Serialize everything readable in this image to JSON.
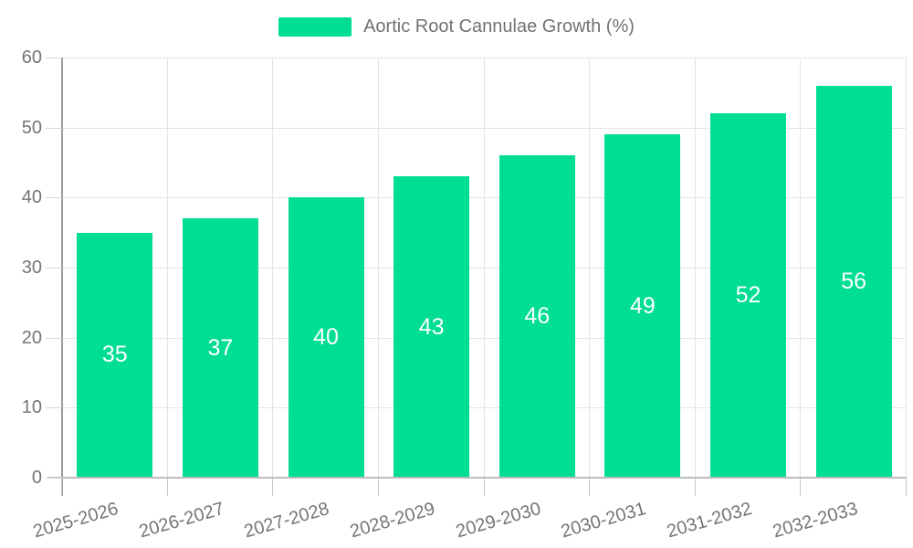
{
  "legend": {
    "label": "Aortic Root Cannulae Growth (%)"
  },
  "chart_data": {
    "type": "bar",
    "title": "Aortic Root Cannulae Growth (%)",
    "categories": [
      "2025-2026",
      "2026-2027",
      "2027-2028",
      "2028-2029",
      "2029-2030",
      "2030-2031",
      "2031-2032",
      "2032-2033"
    ],
    "values": [
      35,
      37,
      40,
      43,
      46,
      49,
      52,
      56
    ],
    "series": [
      {
        "name": "Aortic Root Cannulae Growth (%)",
        "values": [
          35,
          37,
          40,
          43,
          46,
          49,
          52,
          56
        ]
      }
    ],
    "xlabel": "",
    "ylabel": "",
    "ylim": [
      0,
      60
    ],
    "yticks": [
      0,
      10,
      20,
      30,
      40,
      50,
      60
    ],
    "grid": true,
    "legend_position": "top-center",
    "data_labels": "centered-inside-bars",
    "bar_color": "#00DE92",
    "data_label_color": "#FFFFFF",
    "axis_label_color": "#757575",
    "grid_color": "#E4E4E4",
    "background_color": "#FFFFFF"
  }
}
